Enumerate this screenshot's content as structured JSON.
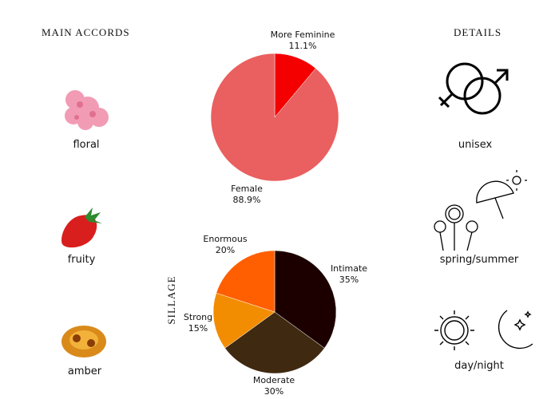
{
  "accords": {
    "title": "MAIN ACCORDS",
    "items": [
      {
        "label": "floral"
      },
      {
        "label": "fruity"
      },
      {
        "label": "amber"
      }
    ]
  },
  "details": {
    "title": "DETAILS",
    "items": [
      {
        "label": "unisex",
        "icon": "gender-icon"
      },
      {
        "label": "spring/summer",
        "icon": "flowers-umbrella-sun-icon"
      },
      {
        "label": "day/night",
        "icon": "sun-moon-icon"
      }
    ]
  },
  "chart_data": [
    {
      "type": "pie",
      "title": "",
      "start": "top",
      "direction": "clockwise",
      "slices": [
        {
          "name": "More Feminine",
          "value": 11.1,
          "label": "11.1%",
          "color": "#f50000"
        },
        {
          "name": "Female",
          "value": 88.9,
          "label": "88.9%",
          "color": "#ea5f5f"
        }
      ]
    },
    {
      "type": "pie",
      "title": "SILLAGE",
      "start": "top",
      "direction": "clockwise",
      "slices": [
        {
          "name": "Intimate",
          "value": 35,
          "label": "35%",
          "color": "#1c0000"
        },
        {
          "name": "Moderate",
          "value": 30,
          "label": "30%",
          "color": "#3f2910"
        },
        {
          "name": "Strong",
          "value": 15,
          "label": "15%",
          "color": "#f28c00"
        },
        {
          "name": "Enormous",
          "value": 20,
          "label": "20%",
          "color": "#ff5f00"
        }
      ]
    }
  ]
}
